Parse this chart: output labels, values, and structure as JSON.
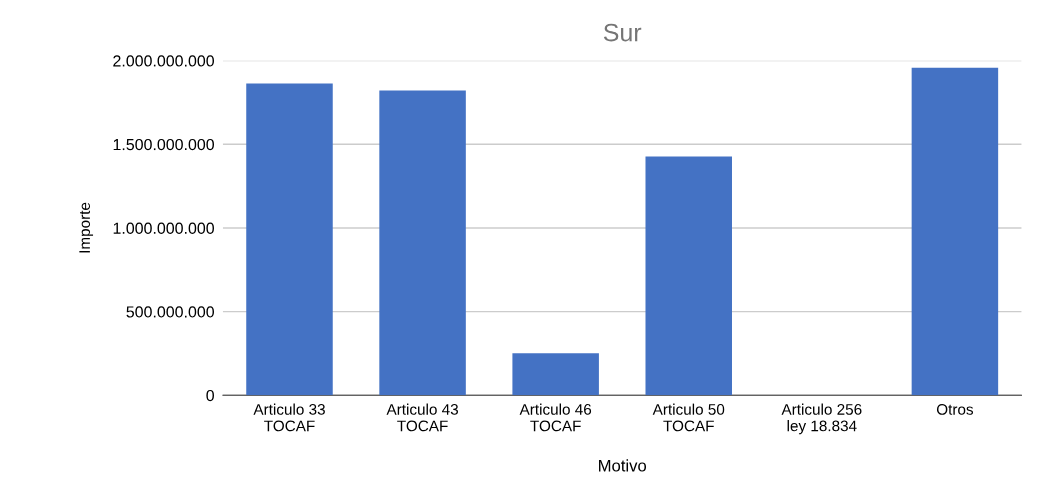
{
  "chart_data": {
    "type": "bar",
    "title": "Sur",
    "xlabel": "Motivo",
    "ylabel": "Importe",
    "categories": [
      "Articulo 33\nTOCAF",
      "Articulo 43\nTOCAF",
      "Articulo 46\nTOCAF",
      "Articulo 50\nTOCAF",
      "Articulo 256\nley 18.834",
      "Otros"
    ],
    "values": [
      1863000000,
      1821000000,
      251000000,
      1427000000,
      0,
      1958000000
    ],
    "color": "#4472c4",
    "ylim": [
      0,
      2000000000
    ],
    "yticks": [
      {
        "value": 0,
        "label": "0"
      },
      {
        "value": 500000000,
        "label": "500.000.000"
      },
      {
        "value": 1000000000,
        "label": "1.000.000.000"
      },
      {
        "value": 1500000000,
        "label": "1.500.000.000"
      },
      {
        "value": 2000000000,
        "label": "2.000.000.000"
      }
    ],
    "grid": "y",
    "legend": false
  }
}
